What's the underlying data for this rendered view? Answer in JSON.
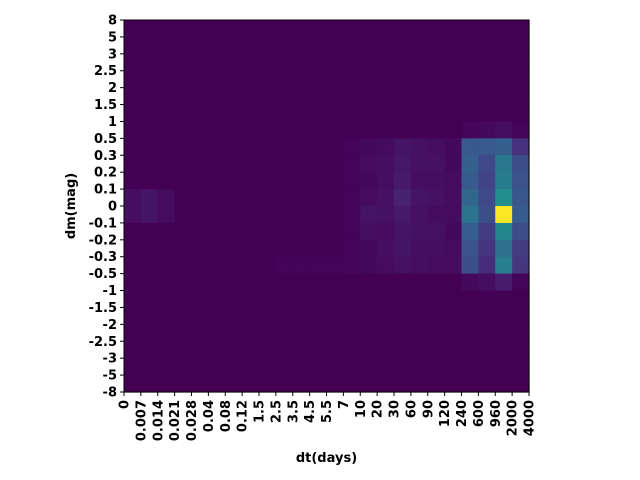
{
  "chart_data": {
    "type": "heatmap",
    "xlabel": "dt(days)",
    "ylabel": "dm(mag)",
    "x_ticks": [
      "0",
      "0.007",
      "0.014",
      "0.021",
      "0.028",
      "0.04",
      "0.08",
      "0.12",
      "1.5",
      "2.5",
      "3.5",
      "4.5",
      "5.5",
      "7",
      "10",
      "20",
      "30",
      "60",
      "90",
      "120",
      "240",
      "600",
      "960",
      "2000",
      "4000"
    ],
    "y_ticks": [
      "8",
      "5",
      "3",
      "2.5",
      "2",
      "1.5",
      "1",
      "0.5",
      "0.3",
      "0.2",
      "0.1",
      "0",
      "-0.1",
      "-0.2",
      "-0.3",
      "-0.5",
      "-1",
      "-1.5",
      "-2",
      "-2.5",
      "-3",
      "-5",
      "-8"
    ],
    "colormap": "viridis",
    "grid": false,
    "z_note": "values are normalized intensity 0-1; rows listed top (dm 8..5) to bottom (dm -5..-8), columns left (dt 0..0.007) to right (dt 2000..4000)",
    "values": [
      [
        0,
        0,
        0,
        0,
        0,
        0,
        0,
        0,
        0,
        0,
        0,
        0,
        0,
        0,
        0,
        0,
        0,
        0,
        0,
        0,
        0,
        0,
        0,
        0
      ],
      [
        0,
        0,
        0,
        0,
        0,
        0,
        0,
        0,
        0,
        0,
        0,
        0,
        0,
        0,
        0,
        0,
        0,
        0,
        0,
        0,
        0,
        0,
        0,
        0
      ],
      [
        0,
        0,
        0,
        0,
        0,
        0,
        0,
        0,
        0,
        0,
        0,
        0,
        0,
        0,
        0,
        0,
        0,
        0,
        0,
        0,
        0,
        0,
        0,
        0
      ],
      [
        0,
        0,
        0,
        0,
        0,
        0,
        0,
        0,
        0,
        0,
        0,
        0,
        0,
        0,
        0,
        0,
        0,
        0,
        0,
        0,
        0,
        0,
        0,
        0
      ],
      [
        0,
        0,
        0,
        0,
        0,
        0,
        0,
        0,
        0,
        0,
        0,
        0,
        0,
        0,
        0,
        0,
        0,
        0,
        0,
        0,
        0,
        0,
        0,
        0
      ],
      [
        0,
        0,
        0,
        0,
        0,
        0,
        0,
        0,
        0,
        0,
        0,
        0,
        0,
        0,
        0,
        0,
        0,
        0,
        0,
        0,
        0,
        0,
        0,
        0
      ],
      [
        0,
        0,
        0,
        0,
        0,
        0,
        0,
        0,
        0,
        0,
        0,
        0,
        0,
        0,
        0,
        0,
        0,
        0,
        0,
        0,
        0.02,
        0.03,
        0.05,
        0.01
      ],
      [
        0,
        0,
        0,
        0,
        0,
        0,
        0,
        0,
        0,
        0,
        0,
        0,
        0,
        0.01,
        0.03,
        0.04,
        0.07,
        0.06,
        0.05,
        0.03,
        0.35,
        0.35,
        0.38,
        0.18
      ],
      [
        0,
        0,
        0,
        0,
        0,
        0,
        0,
        0,
        0,
        0,
        0,
        0,
        0,
        0.01,
        0.04,
        0.05,
        0.08,
        0.06,
        0.06,
        0.03,
        0.38,
        0.27,
        0.5,
        0.3
      ],
      [
        0,
        0,
        0,
        0,
        0,
        0,
        0,
        0,
        0,
        0,
        0,
        0,
        0,
        0.01,
        0.03,
        0.05,
        0.09,
        0.05,
        0.05,
        0.04,
        0.36,
        0.25,
        0.52,
        0.32
      ],
      [
        0.05,
        0.07,
        0.04,
        0,
        0,
        0,
        0,
        0,
        0,
        0,
        0,
        0,
        0,
        0.01,
        0.04,
        0.06,
        0.12,
        0.07,
        0.06,
        0.04,
        0.42,
        0.27,
        0.62,
        0.34
      ],
      [
        0.05,
        0.07,
        0.04,
        0,
        0,
        0,
        0,
        0,
        0,
        0,
        0,
        0,
        0,
        0.02,
        0.07,
        0.06,
        0.09,
        0.06,
        0.04,
        0.04,
        0.48,
        0.3,
        1.0,
        0.36
      ],
      [
        0,
        0,
        0,
        0,
        0,
        0,
        0,
        0,
        0,
        0,
        0,
        0,
        0,
        0.01,
        0.05,
        0.04,
        0.07,
        0.06,
        0.06,
        0.03,
        0.37,
        0.22,
        0.58,
        0.3
      ],
      [
        0,
        0,
        0,
        0,
        0,
        0,
        0,
        0,
        0,
        0,
        0,
        0,
        0,
        0.01,
        0.03,
        0.05,
        0.07,
        0.05,
        0.05,
        0.04,
        0.32,
        0.19,
        0.46,
        0.22
      ],
      [
        0,
        0,
        0,
        0,
        0,
        0,
        0,
        0,
        0,
        0.01,
        0.01,
        0.01,
        0.01,
        0.02,
        0.03,
        0.04,
        0.06,
        0.05,
        0.04,
        0.04,
        0.3,
        0.16,
        0.53,
        0.2
      ],
      [
        0,
        0,
        0,
        0,
        0,
        0,
        0,
        0,
        0,
        0,
        0,
        0,
        0,
        0,
        0,
        0,
        0,
        0,
        0,
        0,
        0.03,
        0.05,
        0.1,
        0.01
      ],
      [
        0,
        0,
        0,
        0,
        0,
        0,
        0,
        0,
        0,
        0,
        0,
        0,
        0,
        0,
        0,
        0,
        0,
        0,
        0,
        0,
        0,
        0,
        0,
        0
      ],
      [
        0,
        0,
        0,
        0,
        0,
        0,
        0,
        0,
        0,
        0,
        0,
        0,
        0,
        0,
        0,
        0,
        0,
        0,
        0,
        0,
        0,
        0,
        0,
        0
      ],
      [
        0,
        0,
        0,
        0,
        0,
        0,
        0,
        0,
        0,
        0,
        0,
        0,
        0,
        0,
        0,
        0,
        0,
        0,
        0,
        0,
        0,
        0,
        0,
        0
      ],
      [
        0,
        0,
        0,
        0,
        0,
        0,
        0,
        0,
        0,
        0,
        0,
        0,
        0,
        0,
        0,
        0,
        0,
        0,
        0,
        0,
        0,
        0,
        0,
        0
      ],
      [
        0,
        0,
        0,
        0,
        0,
        0,
        0,
        0,
        0,
        0,
        0,
        0,
        0,
        0,
        0,
        0,
        0,
        0,
        0,
        0,
        0,
        0,
        0,
        0
      ],
      [
        0,
        0,
        0,
        0,
        0,
        0,
        0,
        0,
        0,
        0,
        0,
        0,
        0,
        0,
        0,
        0,
        0,
        0,
        0,
        0,
        0,
        0,
        0,
        0
      ]
    ]
  }
}
